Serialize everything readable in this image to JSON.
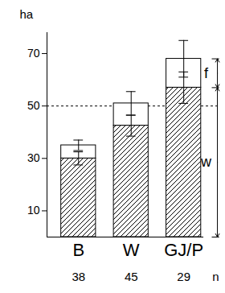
{
  "chart_data": {
    "type": "bar",
    "stacked": true,
    "categories": [
      "B",
      "W",
      "GJ/P"
    ],
    "series": [
      {
        "name": "w",
        "color": "#000000",
        "values": [
          30,
          42.5,
          57
        ],
        "error": [
          2.5,
          4,
          6
        ]
      },
      {
        "name": "f",
        "color": "#ffffff",
        "values": [
          5,
          8.5,
          11
        ],
        "error": [
          2,
          4.5,
          7
        ]
      }
    ],
    "ylabel": "ha",
    "ylim": [
      0,
      78
    ],
    "yticks": [
      10,
      30,
      50,
      70
    ],
    "hline": 50,
    "n_label": "n",
    "n_values": [
      38,
      45,
      29
    ],
    "grid": false
  }
}
